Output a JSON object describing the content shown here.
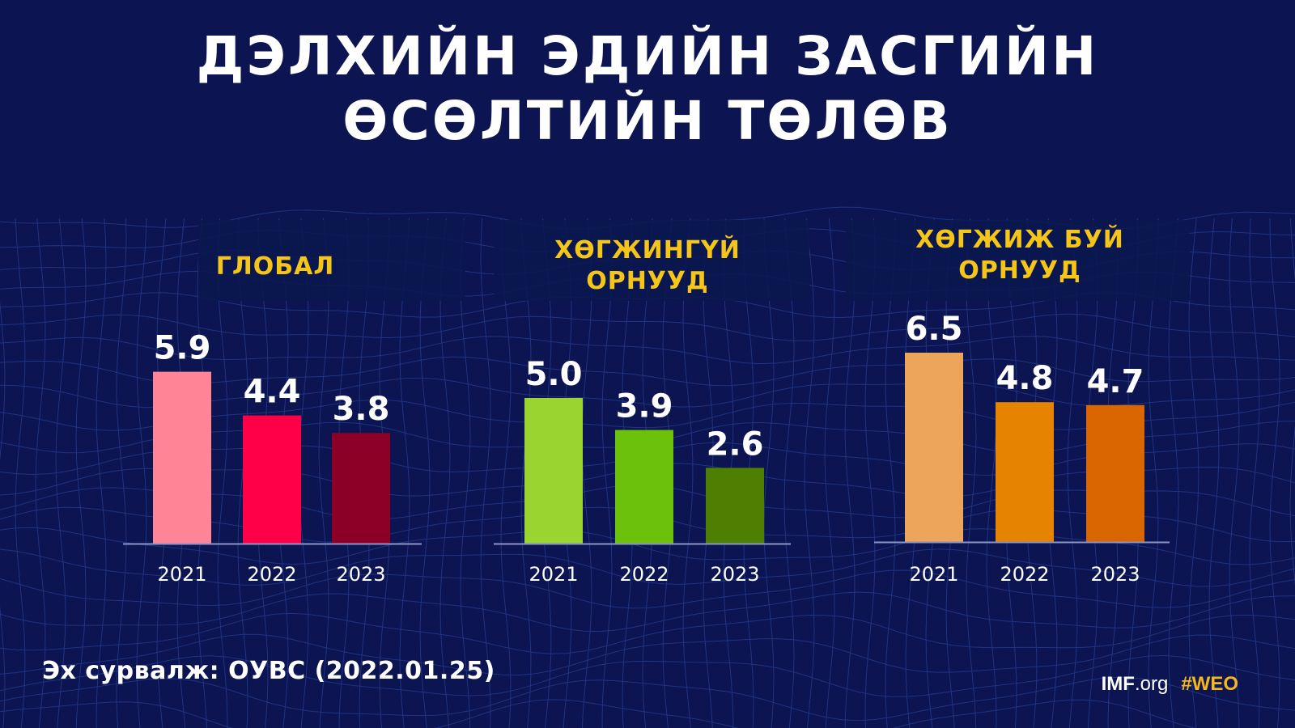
{
  "header": {
    "title_line1": "ДЭЛХИЙН ЭДИЙН ЗАСГИЙН",
    "title_line2": "ӨСӨЛТИЙН ТӨЛӨВ"
  },
  "groups": [
    {
      "label_line1": "ГЛОБАЛ",
      "label_line2": ""
    },
    {
      "label_line1": "ХӨГЖИНГҮЙ",
      "label_line2": "ОРНУУД"
    },
    {
      "label_line1": "ХӨГЖИЖ БУЙ",
      "label_line2": "ОРНУУД"
    }
  ],
  "chart_data": [
    {
      "type": "bar",
      "title": "ГЛОБАЛ",
      "categories": [
        "2021",
        "2022",
        "2023"
      ],
      "values": [
        5.9,
        4.4,
        3.8
      ],
      "colors": [
        "#ff8596",
        "#ff0048",
        "#8c0028"
      ],
      "grid": false
    },
    {
      "type": "bar",
      "title": "ХӨГЖИНГҮЙ ОРНУУД",
      "categories": [
        "2021",
        "2022",
        "2023"
      ],
      "values": [
        5.0,
        3.9,
        2.6
      ],
      "colors": [
        "#9ad431",
        "#6cc10a",
        "#4f7f02"
      ],
      "grid": false
    },
    {
      "type": "bar",
      "title": "ХӨГЖИЖ БУЙ ОРНУУД",
      "categories": [
        "2021",
        "2022",
        "2023"
      ],
      "values": [
        6.5,
        4.8,
        4.7
      ],
      "colors": [
        "#eda55c",
        "#e68300",
        "#d96600"
      ],
      "grid": false
    }
  ],
  "footer": {
    "source": "Эх сурвалж: ОУВС (2022.01.25)",
    "imf_bold": "IMF",
    "imf_rest": ".org",
    "hashtag": "#WEO"
  },
  "colors": {
    "background": "#0c1452",
    "label_yellow": "#f5c518",
    "baseline": "#8a95c8"
  }
}
